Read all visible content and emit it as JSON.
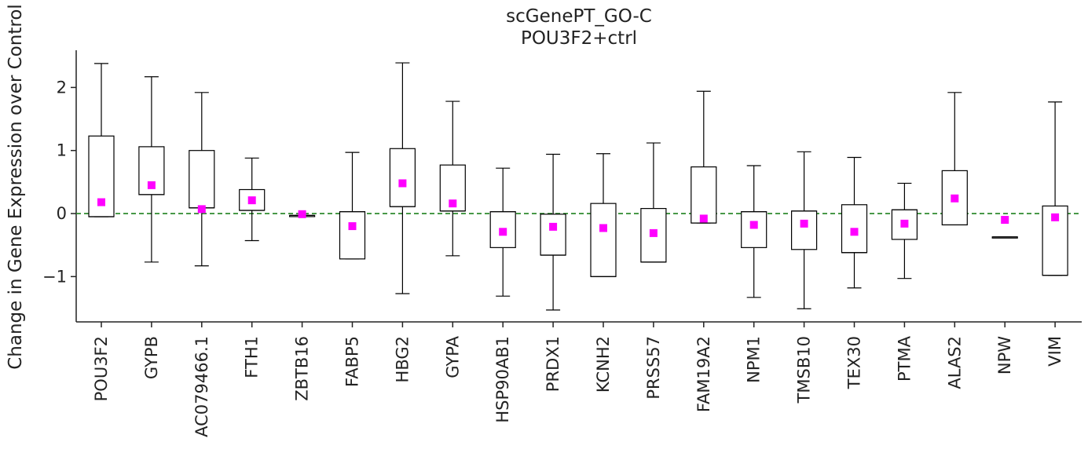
{
  "chart_data": {
    "type": "box",
    "title": "scGenePT_GO-C",
    "subtitle": "POU3F2+ctrl",
    "xlabel": "",
    "ylabel": "Change in Gene Expression over Control",
    "ylim": [
      -1.75,
      2.6
    ],
    "yticks": [
      -1,
      0,
      1,
      2
    ],
    "ytick_labels": [
      "−1",
      "0",
      "1",
      "2"
    ],
    "reference_line": {
      "y": 0,
      "style": "dashed",
      "color": "#2e8b2e"
    },
    "box_color": "#000000",
    "mean_marker_color": "#ff00ff",
    "grid": false,
    "categories": [
      "POU3F2",
      "GYPB",
      "AC079466.1",
      "FTH1",
      "ZBTB16",
      "FABP5",
      "HBG2",
      "GYPA",
      "HSP90AB1",
      "PRDX1",
      "KCNH2",
      "PRSS57",
      "FAM19A2",
      "NPM1",
      "TMSB10",
      "TEX30",
      "PTMA",
      "ALAS2",
      "NPW",
      "VIM"
    ],
    "boxes": [
      {
        "whislo": -0.05,
        "q1": -0.05,
        "med": -0.05,
        "q3": 1.23,
        "whishi": 2.38,
        "mean": 0.18
      },
      {
        "whislo": -0.77,
        "q1": 0.3,
        "med": 0.3,
        "q3": 1.06,
        "whishi": 2.17,
        "mean": 0.45
      },
      {
        "whislo": -0.83,
        "q1": 0.09,
        "med": 0.09,
        "q3": 1.0,
        "whishi": 1.92,
        "mean": 0.07
      },
      {
        "whislo": -0.43,
        "q1": 0.05,
        "med": 0.05,
        "q3": 0.38,
        "whishi": 0.88,
        "mean": 0.21
      },
      {
        "whislo": -0.03,
        "q1": -0.03,
        "med": -0.03,
        "q3": -0.03,
        "whishi": -0.03,
        "mean": -0.01
      },
      {
        "whislo": -0.72,
        "q1": -0.72,
        "med": 0.03,
        "q3": 0.03,
        "whishi": 0.97,
        "mean": -0.2
      },
      {
        "whislo": -1.27,
        "q1": 0.11,
        "med": 0.11,
        "q3": 1.03,
        "whishi": 2.39,
        "mean": 0.48
      },
      {
        "whislo": -0.67,
        "q1": 0.04,
        "med": 0.04,
        "q3": 0.77,
        "whishi": 1.78,
        "mean": 0.16
      },
      {
        "whislo": -1.31,
        "q1": -0.54,
        "med": 0.03,
        "q3": 0.03,
        "whishi": 0.72,
        "mean": -0.29
      },
      {
        "whislo": -1.53,
        "q1": -0.66,
        "med": -0.66,
        "q3": -0.01,
        "whishi": 0.94,
        "mean": -0.21
      },
      {
        "whislo": -1.0,
        "q1": -1.0,
        "med": -1.0,
        "q3": 0.16,
        "whishi": 0.95,
        "mean": -0.23
      },
      {
        "whislo": -0.77,
        "q1": -0.77,
        "med": -0.77,
        "q3": 0.08,
        "whishi": 1.12,
        "mean": -0.31
      },
      {
        "whislo": -0.15,
        "q1": -0.15,
        "med": -0.15,
        "q3": 0.74,
        "whishi": 1.94,
        "mean": -0.08
      },
      {
        "whislo": -1.33,
        "q1": -0.54,
        "med": 0.03,
        "q3": 0.03,
        "whishi": 0.76,
        "mean": -0.18
      },
      {
        "whislo": -1.51,
        "q1": -0.57,
        "med": 0.04,
        "q3": 0.04,
        "whishi": 0.98,
        "mean": -0.16
      },
      {
        "whislo": -1.18,
        "q1": -0.62,
        "med": -0.62,
        "q3": 0.14,
        "whishi": 0.89,
        "mean": -0.29
      },
      {
        "whislo": -1.03,
        "q1": -0.41,
        "med": 0.06,
        "q3": 0.06,
        "whishi": 0.48,
        "mean": -0.16
      },
      {
        "whislo": -0.18,
        "q1": -0.18,
        "med": -0.18,
        "q3": 0.68,
        "whishi": 1.92,
        "mean": 0.24
      },
      {
        "whislo": -0.37,
        "q1": -0.37,
        "med": -0.37,
        "q3": -0.37,
        "whishi": -0.37,
        "mean": -0.1
      },
      {
        "whislo": -0.98,
        "q1": -0.98,
        "med": -0.98,
        "q3": 0.12,
        "whishi": 1.77,
        "mean": -0.06
      }
    ]
  }
}
